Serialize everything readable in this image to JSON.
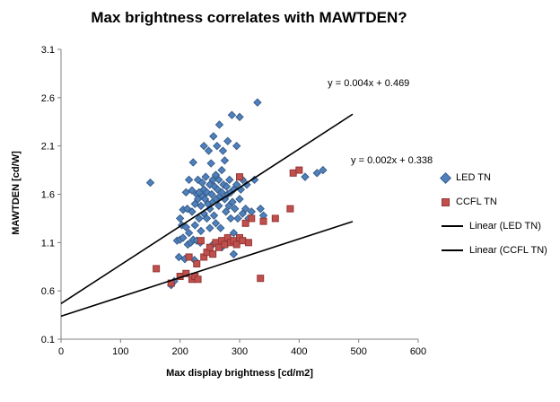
{
  "chart_data": {
    "type": "scatter",
    "title": "Max brightness correlates with MAWTDEN?",
    "xlabel": "Max display brightness [cd/m2]",
    "ylabel": "MAWTDEN [cd/W]",
    "xlim": [
      0,
      600
    ],
    "ylim": [
      0.1,
      3.1
    ],
    "x_ticks": [
      "0",
      "100",
      "200",
      "300",
      "400",
      "500",
      "600"
    ],
    "y_ticks": [
      "0.1",
      "0.6",
      "1.1",
      "1.6",
      "2.1",
      "2.6",
      "3.1"
    ],
    "grid": false,
    "legend_position": "right",
    "series": [
      {
        "name": "LED TN",
        "marker": "diamond",
        "color": "#4f81bd",
        "edge_color": "#385d8a",
        "points": [
          [
            150,
            1.72
          ],
          [
            185,
            0.66
          ],
          [
            190,
            0.7
          ],
          [
            195,
            1.12
          ],
          [
            198,
            0.95
          ],
          [
            200,
            1.35
          ],
          [
            200,
            1.13
          ],
          [
            203,
            1.28
          ],
          [
            205,
            1.44
          ],
          [
            205,
            1.15
          ],
          [
            208,
            0.93
          ],
          [
            210,
            1.26
          ],
          [
            210,
            1.62
          ],
          [
            212,
            1.45
          ],
          [
            213,
            1.08
          ],
          [
            215,
            1.2
          ],
          [
            215,
            1.75
          ],
          [
            218,
            1.1
          ],
          [
            220,
            1.42
          ],
          [
            220,
            1.64
          ],
          [
            222,
            1.93
          ],
          [
            222,
            1.13
          ],
          [
            224,
            0.92
          ],
          [
            225,
            1.5
          ],
          [
            225,
            1.28
          ],
          [
            228,
            1.6
          ],
          [
            228,
            1.12
          ],
          [
            230,
            1.55
          ],
          [
            230,
            1.75
          ],
          [
            232,
            1.35
          ],
          [
            232,
            1.62
          ],
          [
            234,
            1.1
          ],
          [
            235,
            1.48
          ],
          [
            235,
            1.22
          ],
          [
            237,
            1.72
          ],
          [
            238,
            1.58
          ],
          [
            240,
            1.65
          ],
          [
            240,
            1.4
          ],
          [
            240,
            2.1
          ],
          [
            242,
            1.55
          ],
          [
            243,
            1.78
          ],
          [
            245,
            1.62
          ],
          [
            245,
            1.35
          ],
          [
            247,
            1.5
          ],
          [
            248,
            2.05
          ],
          [
            250,
            1.7
          ],
          [
            250,
            1.45
          ],
          [
            250,
            1.25
          ],
          [
            252,
            1.92
          ],
          [
            253,
            1.6
          ],
          [
            255,
            1.75
          ],
          [
            255,
            1.52
          ],
          [
            255,
            1.08
          ],
          [
            256,
            2.2
          ],
          [
            257,
            1.38
          ],
          [
            258,
            1.68
          ],
          [
            260,
            1.8
          ],
          [
            260,
            1.55
          ],
          [
            260,
            1.3
          ],
          [
            262,
            2.1
          ],
          [
            263,
            1.65
          ],
          [
            265,
            1.75
          ],
          [
            265,
            1.48
          ],
          [
            266,
            2.32
          ],
          [
            267,
            1.58
          ],
          [
            268,
            1.25
          ],
          [
            270,
            1.85
          ],
          [
            270,
            1.62
          ],
          [
            270,
            1.05
          ],
          [
            272,
            2.05
          ],
          [
            273,
            1.7
          ],
          [
            275,
            1.55
          ],
          [
            275,
            1.95
          ],
          [
            277,
            1.42
          ],
          [
            278,
            1.68
          ],
          [
            280,
            1.6
          ],
          [
            280,
            2.15
          ],
          [
            282,
            1.48
          ],
          [
            283,
            1.75
          ],
          [
            285,
            1.62
          ],
          [
            285,
            1.35
          ],
          [
            287,
            2.42
          ],
          [
            288,
            1.52
          ],
          [
            290,
            1.65
          ],
          [
            290,
            1.2
          ],
          [
            290,
            0.98
          ],
          [
            292,
            1.45
          ],
          [
            295,
            1.7
          ],
          [
            295,
            2.1
          ],
          [
            297,
            1.35
          ],
          [
            300,
            1.55
          ],
          [
            300,
            2.4
          ],
          [
            302,
            1.65
          ],
          [
            305,
            1.4
          ],
          [
            305,
            1.75
          ],
          [
            310,
            1.45
          ],
          [
            312,
            1.7
          ],
          [
            315,
            1.35
          ],
          [
            320,
            1.42
          ],
          [
            325,
            1.75
          ],
          [
            330,
            2.55
          ],
          [
            335,
            1.45
          ],
          [
            340,
            1.38
          ],
          [
            410,
            1.78
          ],
          [
            430,
            1.82
          ],
          [
            440,
            1.85
          ]
        ]
      },
      {
        "name": "CCFL TN",
        "marker": "square",
        "color": "#c0504d",
        "edge_color": "#943634",
        "points": [
          [
            160,
            0.83
          ],
          [
            185,
            0.68
          ],
          [
            200,
            0.75
          ],
          [
            210,
            0.78
          ],
          [
            215,
            0.95
          ],
          [
            220,
            0.72
          ],
          [
            225,
            0.75
          ],
          [
            228,
            0.88
          ],
          [
            230,
            0.72
          ],
          [
            235,
            1.12
          ],
          [
            240,
            0.95
          ],
          [
            245,
            1.0
          ],
          [
            250,
            1.05
          ],
          [
            255,
            0.98
          ],
          [
            260,
            1.1
          ],
          [
            265,
            1.05
          ],
          [
            270,
            1.12
          ],
          [
            275,
            1.08
          ],
          [
            280,
            1.15
          ],
          [
            285,
            1.1
          ],
          [
            290,
            1.12
          ],
          [
            295,
            1.08
          ],
          [
            300,
            1.78
          ],
          [
            300,
            1.15
          ],
          [
            305,
            1.12
          ],
          [
            310,
            1.3
          ],
          [
            315,
            1.1
          ],
          [
            320,
            1.35
          ],
          [
            335,
            0.73
          ],
          [
            340,
            1.32
          ],
          [
            360,
            1.35
          ],
          [
            385,
            1.45
          ],
          [
            390,
            1.82
          ],
          [
            400,
            1.85
          ]
        ]
      }
    ],
    "trendlines": [
      {
        "name": "Linear (LED TN)",
        "slope": 0.004,
        "intercept": 0.469,
        "equation": "y = 0.004x + 0.469",
        "x_start": 0,
        "x_end": 490,
        "label_x": 448,
        "label_y": 2.75,
        "color": "#000000"
      },
      {
        "name": "Linear (CCFL TN)",
        "slope": 0.002,
        "intercept": 0.338,
        "equation": "y = 0.002x + 0.338",
        "x_start": 0,
        "x_end": 490,
        "label_x": 487,
        "label_y": 1.95,
        "color": "#000000"
      }
    ],
    "legend": {
      "items": [
        {
          "label": "LED TN",
          "type": "diamond"
        },
        {
          "label": "CCFL TN",
          "type": "square"
        },
        {
          "label": "Linear (LED TN)",
          "type": "line"
        },
        {
          "label": "Linear (CCFL TN)",
          "type": "line"
        }
      ]
    }
  }
}
